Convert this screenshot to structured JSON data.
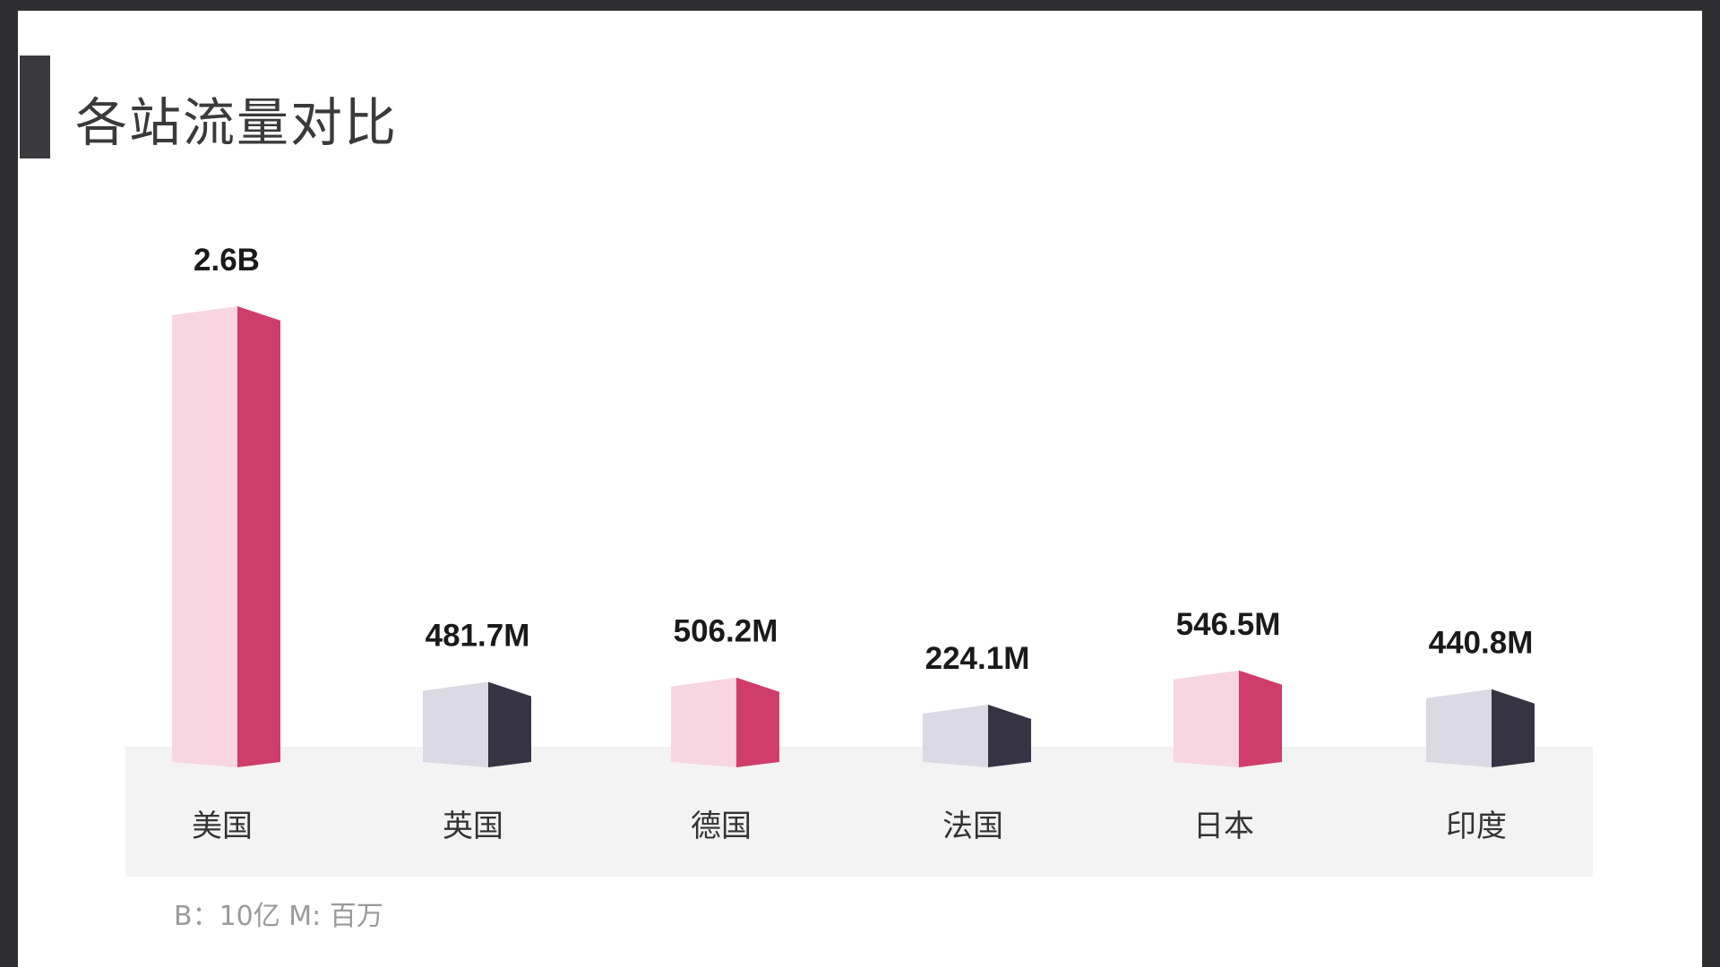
{
  "slide": {
    "title": "各站流量对比",
    "note": "B：10亿  M: 百万"
  },
  "colors": {
    "pink_light": "#f7d6e1",
    "pink_dark": "#d03d6b",
    "gray_light": "#dad9e4",
    "gray_dark": "#363443",
    "floor": "#f3f3f3",
    "accent_bar": "#3a3a3c"
  },
  "chart_data": {
    "type": "bar",
    "title": "各站流量对比",
    "categories": [
      "美国",
      "英国",
      "德国",
      "法国",
      "日本",
      "印度"
    ],
    "values": [
      2600,
      481.7,
      506.2,
      224.1,
      546.5,
      440.8
    ],
    "value_labels": [
      "2.6B",
      "481.7M",
      "506.2M",
      "224.1M",
      "546.5M",
      "440.8M"
    ],
    "bar_styles": [
      "pink",
      "gray",
      "pink",
      "gray",
      "pink",
      "gray"
    ],
    "unit_note": "B：10亿  M: 百万",
    "xlabel": "",
    "ylabel": "",
    "grid": false,
    "legend": "none"
  }
}
